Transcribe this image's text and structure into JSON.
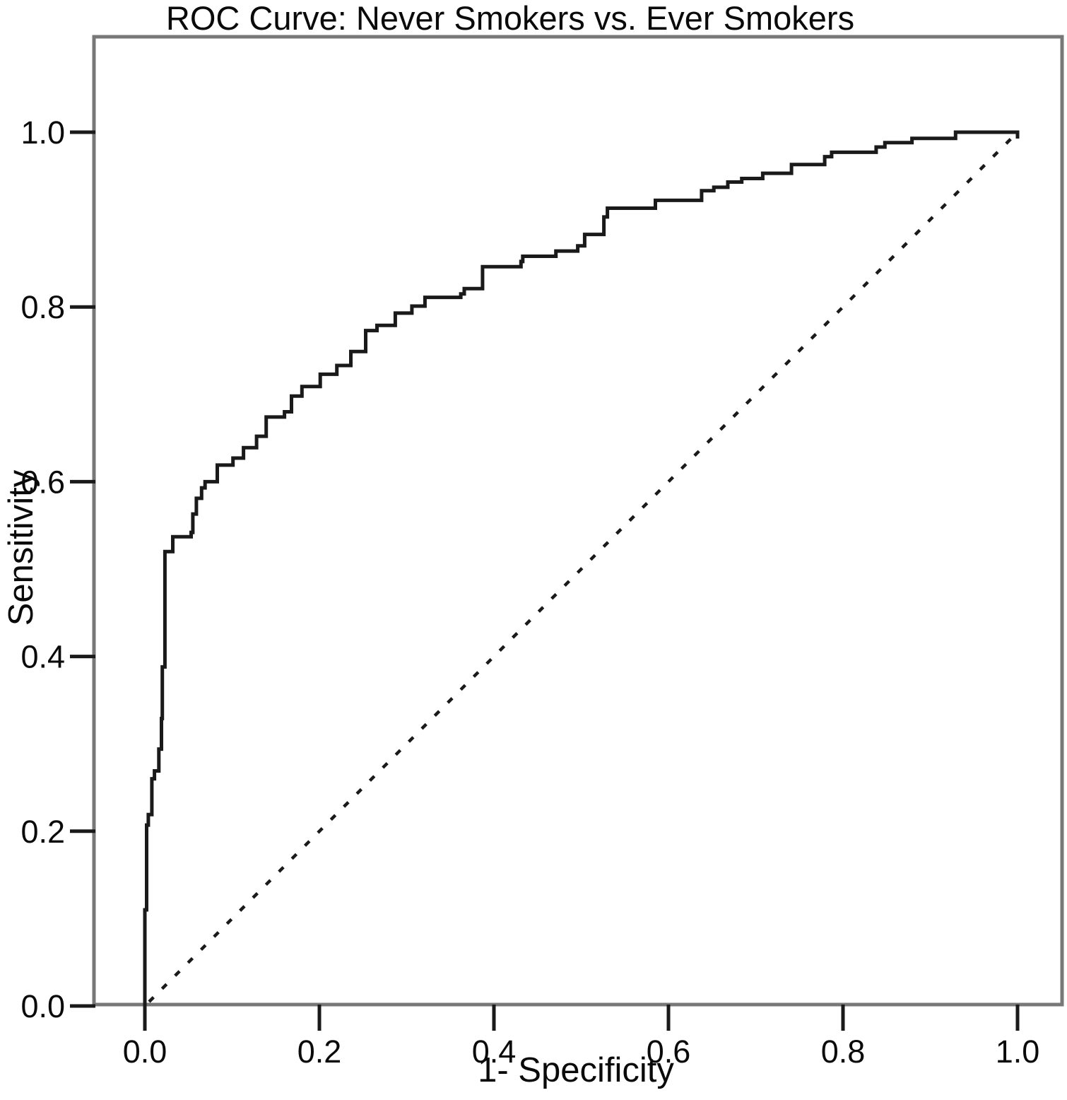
{
  "chart_data": {
    "type": "line",
    "title": "ROC Curve: Never Smokers vs. Ever Smokers",
    "xlabel": "1- Specificity",
    "ylabel": "Sensitivity",
    "xlim": [
      0.0,
      1.0
    ],
    "ylim": [
      0.0,
      1.0
    ],
    "x_ticks": [
      0.0,
      0.2,
      0.4,
      0.6,
      0.8,
      1.0
    ],
    "y_ticks": [
      0.0,
      0.2,
      0.4,
      0.6,
      0.8,
      1.0
    ],
    "x_tick_labels": [
      "0.0",
      "0.2",
      "0.4",
      "0.6",
      "0.8",
      "1.0"
    ],
    "y_tick_labels": [
      "0.0",
      "0.2",
      "0.4",
      "0.6",
      "0.8",
      "1.0"
    ],
    "grid": false,
    "legend_position": "none",
    "series": [
      {
        "name": "ROC curve",
        "line_style": "solid-step",
        "color": "#1a1a1a",
        "points": [
          [
            0.0,
            0.0
          ],
          [
            0.0,
            0.11
          ],
          [
            0.002,
            0.207
          ],
          [
            0.004,
            0.219
          ],
          [
            0.008,
            0.26
          ],
          [
            0.011,
            0.269
          ],
          [
            0.016,
            0.294
          ],
          [
            0.019,
            0.329
          ],
          [
            0.02,
            0.388
          ],
          [
            0.023,
            0.52
          ],
          [
            0.032,
            0.537
          ],
          [
            0.053,
            0.542
          ],
          [
            0.055,
            0.563
          ],
          [
            0.059,
            0.581
          ],
          [
            0.065,
            0.593
          ],
          [
            0.069,
            0.6
          ],
          [
            0.083,
            0.619
          ],
          [
            0.101,
            0.627
          ],
          [
            0.113,
            0.639
          ],
          [
            0.128,
            0.652
          ],
          [
            0.139,
            0.674
          ],
          [
            0.16,
            0.68
          ],
          [
            0.168,
            0.698
          ],
          [
            0.18,
            0.709
          ],
          [
            0.201,
            0.723
          ],
          [
            0.22,
            0.733
          ],
          [
            0.236,
            0.749
          ],
          [
            0.253,
            0.773
          ],
          [
            0.266,
            0.779
          ],
          [
            0.287,
            0.793
          ],
          [
            0.306,
            0.801
          ],
          [
            0.321,
            0.811
          ],
          [
            0.362,
            0.815
          ],
          [
            0.366,
            0.821
          ],
          [
            0.387,
            0.846
          ],
          [
            0.431,
            0.852
          ],
          [
            0.433,
            0.858
          ],
          [
            0.471,
            0.864
          ],
          [
            0.496,
            0.87
          ],
          [
            0.504,
            0.883
          ],
          [
            0.526,
            0.903
          ],
          [
            0.53,
            0.913
          ],
          [
            0.585,
            0.922
          ],
          [
            0.638,
            0.933
          ],
          [
            0.652,
            0.937
          ],
          [
            0.668,
            0.943
          ],
          [
            0.684,
            0.947
          ],
          [
            0.708,
            0.953
          ],
          [
            0.741,
            0.963
          ],
          [
            0.779,
            0.972
          ],
          [
            0.787,
            0.977
          ],
          [
            0.838,
            0.983
          ],
          [
            0.848,
            0.988
          ],
          [
            0.879,
            0.993
          ],
          [
            0.929,
            1.0
          ],
          [
            1.0,
            1.0
          ]
        ]
      },
      {
        "name": "Reference diagonal",
        "line_style": "dashed",
        "color": "#1a1a1a",
        "points": [
          [
            0.0,
            0.0
          ],
          [
            1.0,
            1.0
          ]
        ]
      }
    ]
  },
  "colors": {
    "curve": "#1a1a1a",
    "reference": "#1a1a1a",
    "frame": "#787878",
    "tick": "#1a1a1a",
    "text": "#0a0a0a",
    "background": "#ffffff"
  }
}
